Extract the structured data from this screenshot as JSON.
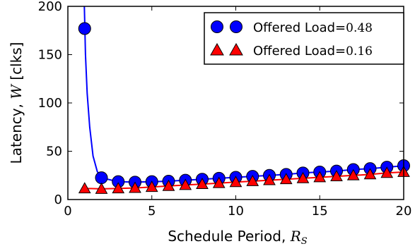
{
  "chart_data": {
    "type": "scatter",
    "xlabel_text": "Schedule Period, ",
    "xlabel_math": "R",
    "xlabel_sub": "S",
    "ylabel_text": "Latency, ",
    "ylabel_math": "W",
    "ylabel_unit": " [clks]",
    "xlim": [
      0,
      20
    ],
    "ylim": [
      0,
      200
    ],
    "xticks": [
      "0",
      "5",
      "10",
      "15",
      "20"
    ],
    "yticks": [
      "0",
      "50",
      "100",
      "150",
      "200"
    ],
    "legend_position": "top-right",
    "series": [
      {
        "name_text": "Offered Load=",
        "name_value": "0.48",
        "marker": "circle",
        "color": "#0000ff",
        "x": [
          1,
          2,
          3,
          4,
          5,
          6,
          7,
          8,
          9,
          10,
          11,
          12,
          13,
          14,
          15,
          16,
          17,
          18,
          19,
          20
        ],
        "y": [
          177,
          22.5,
          18.5,
          18,
          18.5,
          19,
          20,
          21,
          22,
          23,
          24,
          25,
          26,
          27.5,
          28.5,
          29.5,
          31,
          32,
          33.5,
          35
        ],
        "fit_color": "#0000ff"
      },
      {
        "name_text": "Offered Load=",
        "name_value": "0.16",
        "marker": "triangle",
        "color": "#ff0000",
        "x": [
          1,
          2,
          3,
          4,
          5,
          6,
          7,
          8,
          9,
          10,
          11,
          12,
          13,
          14,
          15,
          16,
          17,
          18,
          19,
          20
        ],
        "y": [
          11.5,
          11,
          11.5,
          12,
          13,
          14,
          15,
          16,
          17,
          18,
          19,
          20,
          21,
          22,
          23,
          24,
          25,
          26,
          27.5,
          28.5
        ],
        "fit_color": "#ff0000"
      }
    ]
  }
}
